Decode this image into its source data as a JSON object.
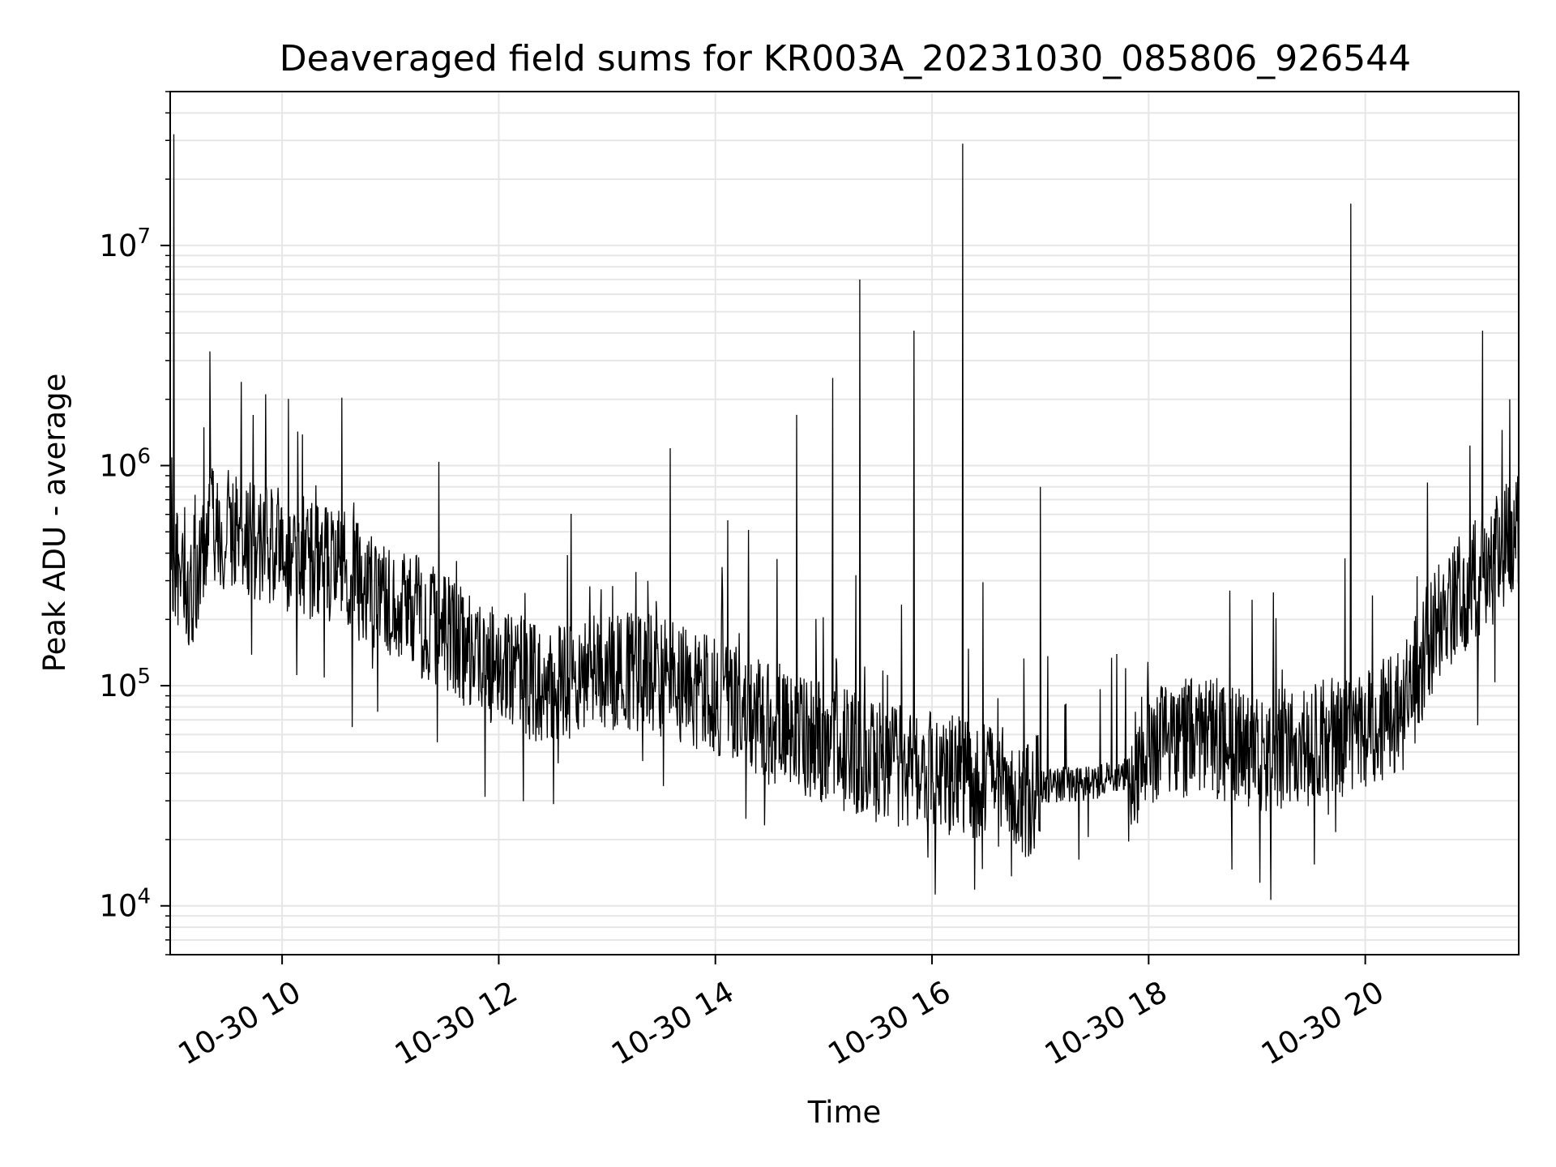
{
  "chart_data": {
    "type": "line",
    "title": "Deaveraged field sums for KR003A_20231030_085806_926544",
    "xlabel": "Time",
    "ylabel": "Peak ADU - average",
    "xscale": "time",
    "yscale": "log",
    "xlim": [
      "2023-10-30T08:58:00",
      "2023-10-30T21:25:00"
    ],
    "ylim": [
      6000,
      50000000
    ],
    "grid": true,
    "line_color": "#000000",
    "grid_color": "#e6e6e6",
    "x_ticks": [
      {
        "t": "2023-10-30T10:00:00",
        "label": "10-30 10"
      },
      {
        "t": "2023-10-30T12:00:00",
        "label": "10-30 12"
      },
      {
        "t": "2023-10-30T14:00:00",
        "label": "10-30 14"
      },
      {
        "t": "2023-10-30T16:00:00",
        "label": "10-30 16"
      },
      {
        "t": "2023-10-30T18:00:00",
        "label": "10-30 18"
      },
      {
        "t": "2023-10-30T20:00:00",
        "label": "10-30 20"
      }
    ],
    "y_ticks": [
      {
        "value": 10000,
        "base": "10",
        "exp": "4"
      },
      {
        "value": 100000,
        "base": "10",
        "exp": "5"
      },
      {
        "value": 1000000,
        "base": "10",
        "exp": "6"
      },
      {
        "value": 10000000,
        "base": "10",
        "exp": "7"
      }
    ],
    "series": [
      {
        "x": [
          "2023-10-30T08:58:00",
          "2023-10-30T09:10:00",
          "2023-10-30T09:20:00",
          "2023-10-30T09:40:00",
          "2023-10-30T10:00:00",
          "2023-10-30T10:30:00",
          "2023-10-30T11:00:00",
          "2023-10-30T11:30:00",
          "2023-10-30T12:00:00",
          "2023-10-30T12:30:00",
          "2023-10-30T13:00:00",
          "2023-10-30T13:30:00",
          "2023-10-30T14:00:00",
          "2023-10-30T14:30:00",
          "2023-10-30T15:00:00",
          "2023-10-30T15:30:00",
          "2023-10-30T16:00:00",
          "2023-10-30T16:30:00",
          "2023-10-30T16:50:00",
          "2023-10-30T17:00:00",
          "2023-10-30T17:30:00",
          "2023-10-30T17:50:00",
          "2023-10-30T18:00:00",
          "2023-10-30T18:30:00",
          "2023-10-30T19:00:00",
          "2023-10-30T19:30:00",
          "2023-10-30T20:00:00",
          "2023-10-30T20:20:00",
          "2023-10-30T20:40:00",
          "2023-10-30T21:00:00",
          "2023-10-30T21:25:00"
        ],
        "y": [
          350000,
          280000,
          550000,
          480000,
          420000,
          350000,
          250000,
          170000,
          120000,
          100000,
          120000,
          110000,
          90000,
          70000,
          55000,
          45000,
          40000,
          38000,
          30000,
          35000,
          36000,
          40000,
          55000,
          60000,
          50000,
          55000,
          65000,
          75000,
          200000,
          300000,
          500000
        ]
      }
    ],
    "spikes": [
      {
        "t": "2023-10-30T09:00:00",
        "y": 32000000
      },
      {
        "t": "2023-10-30T09:20:00",
        "y": 3300000
      },
      {
        "t": "2023-10-30T13:35:00",
        "y": 1200000
      },
      {
        "t": "2023-10-30T14:45:00",
        "y": 1700000
      },
      {
        "t": "2023-10-30T15:05:00",
        "y": 2500000
      },
      {
        "t": "2023-10-30T15:20:00",
        "y": 7000000
      },
      {
        "t": "2023-10-30T15:50:00",
        "y": 4100000
      },
      {
        "t": "2023-10-30T16:17:00",
        "y": 29000000
      },
      {
        "t": "2023-10-30T17:00:00",
        "y": 800000
      },
      {
        "t": "2023-10-30T19:52:00",
        "y": 15500000
      },
      {
        "t": "2023-10-30T21:05:00",
        "y": 4100000
      },
      {
        "t": "2023-10-30T21:20:00",
        "y": 2000000
      }
    ]
  }
}
